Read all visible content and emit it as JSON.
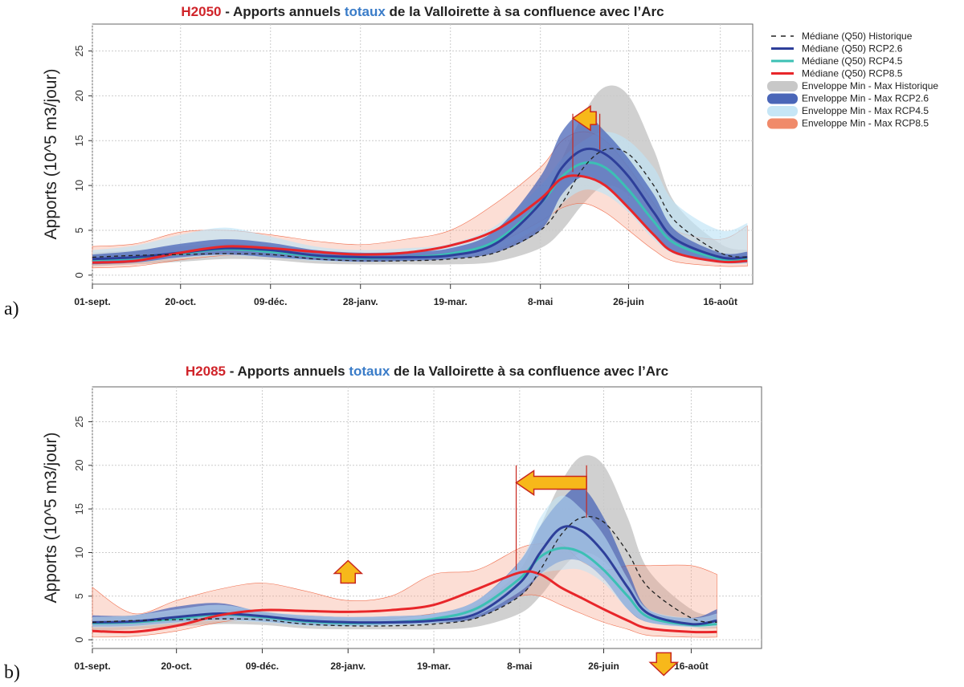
{
  "legend": [
    {
      "label": "Médiane (Q50) Historique",
      "type": "dash",
      "color": "#222222"
    },
    {
      "label": "Médiane (Q50) RCP2.6",
      "type": "line",
      "color": "#2e3f9a"
    },
    {
      "label": "Médiane (Q50) RCP4.5",
      "type": "line",
      "color": "#3cc0b4"
    },
    {
      "label": "Médiane (Q50) RCP8.5",
      "type": "line",
      "color": "#e8262a"
    },
    {
      "label": "Enveloppe Min - Max Historique",
      "type": "band",
      "color": "#c8c8c8"
    },
    {
      "label": "Enveloppe Min - Max RCP2.6",
      "type": "band",
      "color": "#4a66b8"
    },
    {
      "label": "Enveloppe Min - Max RCP4.5",
      "type": "band",
      "color": "#c6e6f6"
    },
    {
      "label": "Enveloppe Min - Max RCP8.5",
      "type": "band",
      "color": "#f08a6a"
    }
  ],
  "chart_data": [
    {
      "panel_label": "a)",
      "type": "area",
      "title": {
        "prefix": "H2050",
        "prefix_color": "#d0242a",
        "part1": " - Apports annuels ",
        "highlight": "totaux",
        "highlight_color": "#3a7cc8",
        "part2": " de la Valloirette à sa confluence avec l’Arc"
      },
      "ylabel": "Apports (10^5 m3/jour)",
      "ylim": [
        -1,
        28
      ],
      "yticks": [
        0,
        5,
        10,
        15,
        20,
        25
      ],
      "xticks": [
        {
          "date": "09-01",
          "label": "01-sept."
        },
        {
          "date": "10-20",
          "label": "20-oct."
        },
        {
          "date": "12-09",
          "label": "09-déc."
        },
        {
          "date": "01-28",
          "label": "28-janv."
        },
        {
          "date": "03-19",
          "label": "19-mar."
        },
        {
          "date": "05-08",
          "label": "8-mai"
        },
        {
          "date": "06-26",
          "label": "26-juin"
        },
        {
          "date": "08-16",
          "label": "16-août"
        }
      ],
      "grid": true,
      "x": [
        "09-01",
        "09-25",
        "10-20",
        "11-14",
        "12-09",
        "01-03",
        "01-28",
        "02-22",
        "03-19",
        "04-13",
        "05-08",
        "05-20",
        "06-01",
        "06-13",
        "06-26",
        "07-10",
        "07-22",
        "08-16",
        "08-31"
      ],
      "envelopes": [
        {
          "name": "Historique",
          "color": "#c8c8c8",
          "opacity": 0.85,
          "min": [
            1,
            1.2,
            1.5,
            1.8,
            1.7,
            1.3,
            1.2,
            1.2,
            1.2,
            1.5,
            3,
            5,
            8,
            10,
            9,
            6,
            3.5,
            1.5,
            1.3
          ],
          "max": [
            2.5,
            2.8,
            3.2,
            3.5,
            3.3,
            2.5,
            2.3,
            2.3,
            2.6,
            4,
            8,
            13,
            18,
            21,
            20,
            14,
            8,
            3.5,
            2.8
          ]
        },
        {
          "name": "RCP8.5",
          "color": "#f6a088",
          "opacity": 0.35,
          "min": [
            0.8,
            1,
            1.7,
            2.2,
            2.2,
            1.8,
            1.6,
            1.8,
            2.4,
            3.5,
            6,
            7.5,
            8,
            7,
            5,
            2.8,
            1.5,
            1,
            1
          ],
          "max": [
            3.2,
            3.5,
            4.8,
            5,
            4.5,
            3.8,
            3.4,
            4,
            5,
            8,
            12,
            15,
            16,
            15,
            12,
            8,
            5,
            4,
            5.5
          ]
        },
        {
          "name": "RCP4.5",
          "color": "#bfe4f6",
          "opacity": 0.65,
          "min": [
            1.2,
            1.4,
            1.9,
            2.2,
            2,
            1.6,
            1.5,
            1.6,
            1.9,
            2.8,
            5.5,
            8,
            9.5,
            9,
            7,
            4,
            2.3,
            1.3,
            1.3
          ],
          "max": [
            2.8,
            3.3,
            4.5,
            5.3,
            4.3,
            3.2,
            2.8,
            3,
            3.5,
            5.5,
            10,
            13,
            15,
            16,
            15,
            12,
            8,
            5,
            5.8
          ]
        },
        {
          "name": "RCP2.6",
          "color": "#4a66b8",
          "opacity": 0.75,
          "min": [
            1.2,
            1.4,
            2,
            2.3,
            2,
            1.7,
            1.5,
            1.6,
            1.8,
            2.5,
            5,
            9,
            11,
            10,
            7.5,
            4.5,
            2.5,
            1.4,
            1.4
          ],
          "max": [
            2.3,
            2.7,
            3.5,
            4,
            3.6,
            2.8,
            2.5,
            2.6,
            3,
            5,
            11,
            16,
            18,
            16,
            13,
            9,
            5,
            2.5,
            2.6
          ]
        }
      ],
      "medians": [
        {
          "name": "RCP4.5",
          "color": "#3cc0b4",
          "dash": false,
          "values": [
            1.7,
            1.9,
            2.4,
            2.9,
            2.6,
            2.1,
            1.9,
            2,
            2.4,
            3.8,
            8,
            11,
            12.5,
            12,
            9.5,
            6,
            3.5,
            1.8,
            1.8
          ]
        },
        {
          "name": "RCP2.6",
          "color": "#2e3f9a",
          "dash": false,
          "values": [
            1.8,
            2,
            2.5,
            3,
            2.8,
            2.2,
            2,
            2,
            2.2,
            3.5,
            8,
            12,
            14,
            13.5,
            11,
            7,
            4,
            2,
            2
          ]
        },
        {
          "name": "RCP8.5",
          "color": "#e8262a",
          "dash": false,
          "values": [
            1.4,
            1.6,
            2.5,
            3.2,
            3,
            2.6,
            2.3,
            2.5,
            3.3,
            5,
            8.5,
            10.8,
            11,
            10,
            7.5,
            4.5,
            2.5,
            1.5,
            1.6
          ]
        },
        {
          "name": "Historique",
          "color": "#222222",
          "dash": true,
          "values": [
            2,
            2.2,
            2.3,
            2.4,
            2.3,
            1.8,
            1.6,
            1.6,
            1.8,
            2.5,
            5,
            8,
            12,
            14,
            13.5,
            10,
            6,
            2.5,
            2
          ]
        }
      ],
      "annotations": [
        {
          "type": "arrow-left",
          "from": "06-08",
          "to": "05-26",
          "y": 17.5
        },
        {
          "type": "vline",
          "date": "05-26",
          "y": [
            11.5,
            18
          ]
        },
        {
          "type": "vline",
          "date": "06-10",
          "y": [
            14,
            18
          ]
        }
      ]
    },
    {
      "panel_label": "b)",
      "type": "area",
      "title": {
        "prefix": "H2085",
        "prefix_color": "#d0242a",
        "part1": " - Apports annuels ",
        "highlight": "totaux",
        "highlight_color": "#3a7cc8",
        "part2": " de la Valloirette à sa confluence avec l’Arc"
      },
      "ylabel": "Apports (10^5 m3/jour)",
      "ylim": [
        -1,
        29
      ],
      "yticks": [
        0,
        5,
        10,
        15,
        20,
        25
      ],
      "xticks": [
        {
          "date": "09-01",
          "label": "01-sept."
        },
        {
          "date": "10-20",
          "label": "20-oct."
        },
        {
          "date": "12-09",
          "label": "09-déc."
        },
        {
          "date": "01-28",
          "label": "28-janv."
        },
        {
          "date": "03-19",
          "label": "19-mar."
        },
        {
          "date": "05-08",
          "label": "8-mai"
        },
        {
          "date": "06-26",
          "label": "26-juin"
        },
        {
          "date": "08-16",
          "label": "16-août"
        }
      ],
      "grid": true,
      "x": [
        "09-01",
        "09-25",
        "10-20",
        "11-14",
        "12-09",
        "01-03",
        "01-28",
        "02-22",
        "03-19",
        "04-13",
        "05-08",
        "05-20",
        "06-01",
        "06-13",
        "06-26",
        "07-10",
        "07-22",
        "08-16",
        "08-31"
      ],
      "envelopes": [
        {
          "name": "Historique",
          "color": "#c8c8c8",
          "opacity": 0.85,
          "min": [
            1,
            1.2,
            1.5,
            1.8,
            1.7,
            1.3,
            1.2,
            1.2,
            1.2,
            1.5,
            3,
            5,
            8,
            10,
            9,
            6,
            3.5,
            1.5,
            1.3
          ],
          "max": [
            2.5,
            2.8,
            3.2,
            3.5,
            3.3,
            2.5,
            2.3,
            2.3,
            2.6,
            4,
            8,
            13,
            18,
            21,
            20,
            14,
            8,
            3.5,
            2.8
          ]
        },
        {
          "name": "RCP8.5",
          "color": "#f6a088",
          "opacity": 0.35,
          "min": [
            0.3,
            0.4,
            1,
            2,
            2.5,
            2.5,
            2.3,
            2.4,
            3,
            3.5,
            5,
            5,
            4,
            3,
            2,
            1.2,
            0.5,
            0.3,
            0.3
          ],
          "max": [
            6,
            3,
            4.5,
            5.8,
            6.5,
            5.6,
            4.5,
            5,
            7.5,
            8,
            10.5,
            11,
            11,
            9,
            8,
            8.5,
            8.5,
            8.5,
            7.5
          ]
        },
        {
          "name": "RCP2.6",
          "color": "#4a66b8",
          "opacity": 0.75,
          "min": [
            1.5,
            1.6,
            2,
            2.3,
            2.1,
            1.7,
            1.6,
            1.7,
            1.9,
            2.5,
            5,
            7.5,
            9,
            9,
            7,
            3.5,
            2,
            1.5,
            1.7
          ],
          "max": [
            2.8,
            2.8,
            3.8,
            4.2,
            3.2,
            2.8,
            2.6,
            2.7,
            3,
            4.5,
            9,
            13,
            16,
            17.5,
            14,
            8,
            3.5,
            2.5,
            3.5
          ]
        },
        {
          "name": "RCP4.5",
          "color": "#bfe4f6",
          "opacity": 0.55,
          "min": [
            1.4,
            1.5,
            1.9,
            2.2,
            2,
            1.6,
            1.5,
            1.6,
            1.9,
            2.8,
            5.5,
            7.5,
            8,
            8,
            6.5,
            3.5,
            2,
            1.4,
            1.5
          ],
          "max": [
            2.6,
            2.8,
            3.5,
            4,
            3.3,
            2.8,
            2.6,
            2.7,
            3,
            4.5,
            9,
            14,
            16.5,
            15,
            12,
            7,
            3.5,
            2.5,
            3
          ]
        }
      ],
      "medians": [
        {
          "name": "RCP4.5",
          "color": "#3cc0b4",
          "dash": false,
          "values": [
            1.9,
            2,
            2.4,
            2.9,
            2.6,
            2.1,
            1.9,
            2,
            2.4,
            3.6,
            7,
            9.5,
            10.5,
            10,
            8,
            5,
            2.6,
            1.7,
            1.8
          ]
        },
        {
          "name": "RCP2.6",
          "color": "#2e3f9a",
          "dash": false,
          "values": [
            2,
            2.1,
            2.6,
            3,
            2.7,
            2.2,
            2,
            2,
            2.2,
            3,
            6.5,
            10,
            12.8,
            12.5,
            10,
            6,
            3,
            1.8,
            2.2
          ]
        },
        {
          "name": "RCP8.5",
          "color": "#e8262a",
          "dash": false,
          "values": [
            1,
            0.9,
            1.6,
            2.8,
            3.4,
            3.3,
            3.2,
            3.4,
            4,
            5.8,
            7.7,
            7.5,
            6,
            4.8,
            3.5,
            2.2,
            1.3,
            0.9,
            0.9
          ]
        },
        {
          "name": "Historique",
          "color": "#222222",
          "dash": true,
          "values": [
            2,
            2.2,
            2.3,
            2.4,
            2.3,
            1.8,
            1.6,
            1.6,
            1.8,
            2.5,
            5,
            8,
            12,
            14,
            13.5,
            10,
            6,
            2.5,
            2
          ]
        }
      ],
      "annotations": [
        {
          "type": "arrow-left",
          "from": "06-16",
          "to": "05-06",
          "y": 18
        },
        {
          "type": "vline",
          "date": "05-06",
          "y": [
            8,
            20
          ]
        },
        {
          "type": "vline",
          "date": "06-16",
          "y": [
            14,
            20
          ]
        },
        {
          "type": "arrow-up",
          "date": "01-28",
          "y": 6.5
        },
        {
          "type": "arrow-down",
          "date": "07-31",
          "y": -1.5
        }
      ]
    }
  ]
}
